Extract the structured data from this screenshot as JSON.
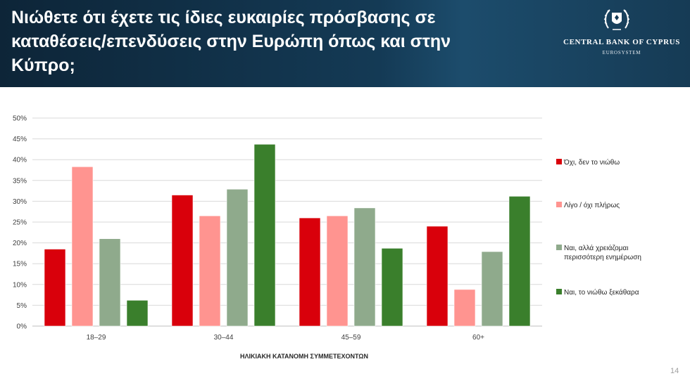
{
  "header": {
    "title": "Νιώθετε ότι έχετε τις ίδιες ευκαιρίες πρόσβασης σε καταθέσεις/επενδύσεις στην Ευρώπη όπως και στην Κύπρο;",
    "logo_name": "CENTRAL BANK OF CYPRUS",
    "logo_sub": "EUROSYSTEM",
    "logo_icon": "coat-of-arms-icon"
  },
  "page_number": "14",
  "colors": {
    "no": "#d9000b",
    "little": "#ff9490",
    "yes_more_info": "#8faa8c",
    "yes_clear": "#3a7f2c",
    "header_bg": "#143a55"
  },
  "chart_data": {
    "type": "bar",
    "categories": [
      "18–29",
      "30–44",
      "45–59",
      "60+"
    ],
    "series": [
      {
        "name": "Όχι, δεν το νιώθω",
        "values": [
          18.5,
          31.5,
          26,
          24
        ]
      },
      {
        "name": "Λίγο / όχι πλήρως",
        "values": [
          38.3,
          26.5,
          26.5,
          8.8
        ]
      },
      {
        "name": "Ναι, αλλά χρειάζομαι περισσότερη ενημέρωση",
        "values": [
          21,
          32.9,
          28.4,
          17.9
        ]
      },
      {
        "name": "Ναι, το νιώθω ξεκάθαρα",
        "values": [
          6.2,
          43.7,
          18.7,
          31.2
        ]
      }
    ],
    "title": "",
    "xlabel": "ΗΛΙΚΙΑΚΗ ΚΑΤΑΝΟΜΗ ΣΥΜΜΕΤΕΧΟΝΤΩΝ",
    "ylabel": "",
    "ylim": [
      0,
      50
    ],
    "yticks": [
      "0%",
      "5%",
      "10%",
      "15%",
      "20%",
      "25%",
      "30%",
      "35%",
      "40%",
      "45%",
      "50%"
    ],
    "grid": true,
    "legend_position": "right"
  }
}
